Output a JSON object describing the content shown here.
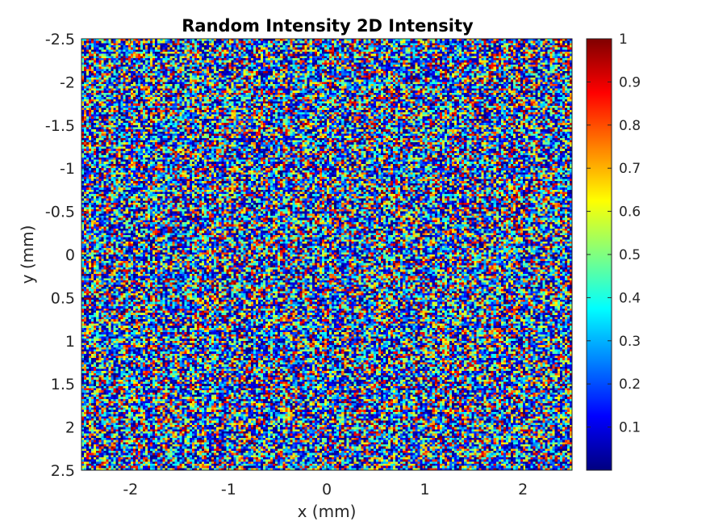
{
  "chart_data": {
    "type": "heatmap",
    "title": "Random Intensity 2D Intensity",
    "xlabel": "x (mm)",
    "ylabel": "y (mm)",
    "xlim": [
      -2.5,
      2.5
    ],
    "ylim": [
      -2.5,
      2.5
    ],
    "y_direction": "reversed",
    "x_ticks": [
      "-2",
      "-1",
      "0",
      "1",
      "2"
    ],
    "x_tick_values": [
      -2,
      -1,
      0,
      1,
      2
    ],
    "y_ticks": [
      "-2.5",
      "-2",
      "-1.5",
      "-1",
      "-0.5",
      "0",
      "0.5",
      "1",
      "1.5",
      "2",
      "2.5"
    ],
    "y_tick_values": [
      -2.5,
      -2,
      -1.5,
      -1,
      -0.5,
      0,
      0.5,
      1,
      1.5,
      2,
      2.5
    ],
    "grid_size": [
      200,
      200
    ],
    "value_range": [
      0,
      1
    ],
    "value_distribution": "random, skewed toward low values",
    "colormap": "jet",
    "colorbar_ticks": [
      "0.1",
      "0.2",
      "0.3",
      "0.4",
      "0.5",
      "0.6",
      "0.7",
      "0.8",
      "0.9",
      "1"
    ],
    "colorbar_tick_values": [
      0.1,
      0.2,
      0.3,
      0.4,
      0.5,
      0.6,
      0.7,
      0.8,
      0.9,
      1
    ],
    "colorbar_position": "right",
    "grid": false
  }
}
